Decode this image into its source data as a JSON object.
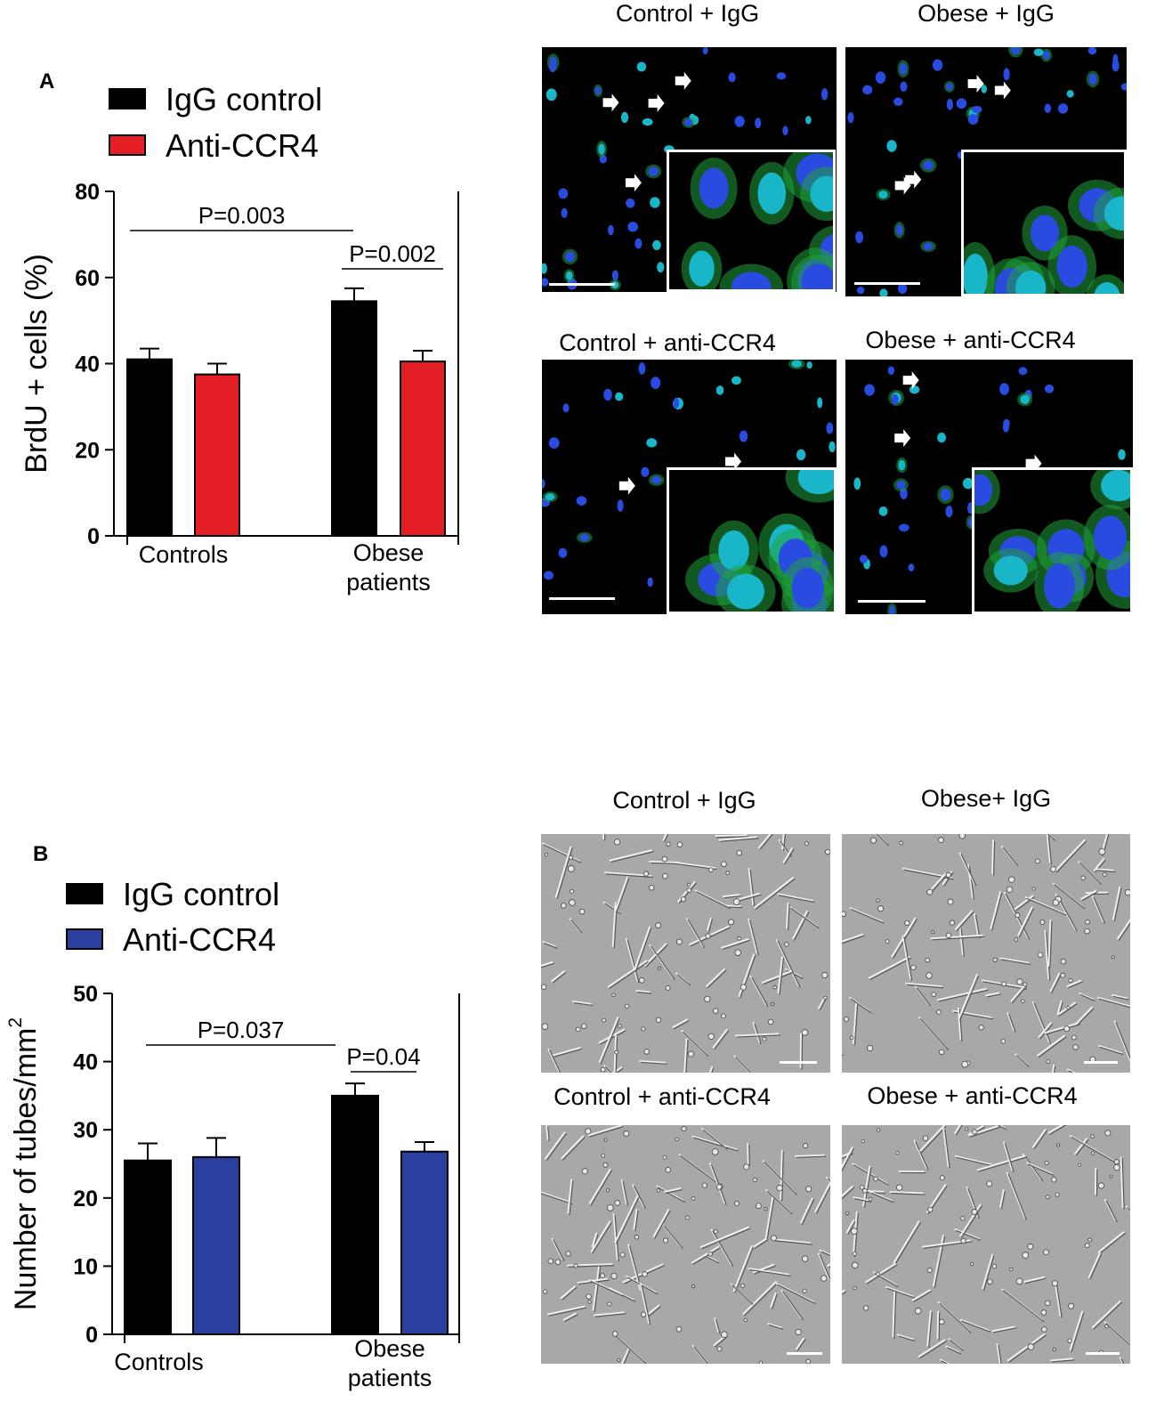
{
  "panel_a": {
    "letter": "A",
    "legend": [
      {
        "label": "IgG control",
        "color": "#000000"
      },
      {
        "label": "Anti-CCR4",
        "color": "#e31e24"
      }
    ],
    "micrographs": [
      {
        "label": "Control + IgG"
      },
      {
        "label": "Obese + IgG"
      },
      {
        "label": "Control + anti-CCR4"
      },
      {
        "label": "Obese + anti-CCR4"
      }
    ]
  },
  "panel_b": {
    "letter": "B",
    "legend": [
      {
        "label": "IgG control",
        "color": "#000000"
      },
      {
        "label": "Anti-CCR4",
        "color": "#2b3f9e"
      }
    ],
    "micrographs": [
      {
        "label": "Control + IgG"
      },
      {
        "label": "Obese+ IgG"
      },
      {
        "label": "Control + anti-CCR4"
      },
      {
        "label": "Obese + anti-CCR4"
      }
    ]
  },
  "chart_data": [
    {
      "type": "bar",
      "panel": "A",
      "categories": [
        "Controls",
        "Obese patients"
      ],
      "ylabel": "BrdU + cells (%)",
      "ylim": [
        0,
        80
      ],
      "yticks": [
        0,
        20,
        40,
        60,
        80
      ],
      "series": [
        {
          "name": "IgG control",
          "color": "#000000",
          "values": [
            41,
            54.5
          ],
          "errors": [
            2.5,
            3
          ]
        },
        {
          "name": "Anti-CCR4",
          "color": "#e31e24",
          "values": [
            37.5,
            40.5
          ],
          "errors": [
            2.5,
            2.5
          ]
        }
      ],
      "annotations": [
        {
          "text": "P=0.003",
          "from": "Controls",
          "to": "Obese patients"
        },
        {
          "text": "P=0.002",
          "from": "Obese patients",
          "to": "Obese patients"
        }
      ]
    },
    {
      "type": "bar",
      "panel": "B",
      "categories": [
        "Controls",
        "Obese patients"
      ],
      "ylabel": "Number of tubes/mm",
      "ylabel_sup": "2",
      "ylim": [
        0,
        50
      ],
      "yticks": [
        0,
        10,
        20,
        30,
        40,
        50
      ],
      "series": [
        {
          "name": "IgG control",
          "color": "#000000",
          "values": [
            25.5,
            35
          ],
          "errors": [
            2.5,
            1.8
          ]
        },
        {
          "name": "Anti-CCR4",
          "color": "#2b3f9e",
          "values": [
            26,
            26.8
          ],
          "errors": [
            2.8,
            1.4
          ]
        }
      ],
      "annotations": [
        {
          "text": "P=0.037",
          "from": "Controls",
          "to": "Obese patients"
        },
        {
          "text": "P=0.04",
          "from": "Obese patients",
          "to": "Obese patients"
        }
      ]
    }
  ]
}
